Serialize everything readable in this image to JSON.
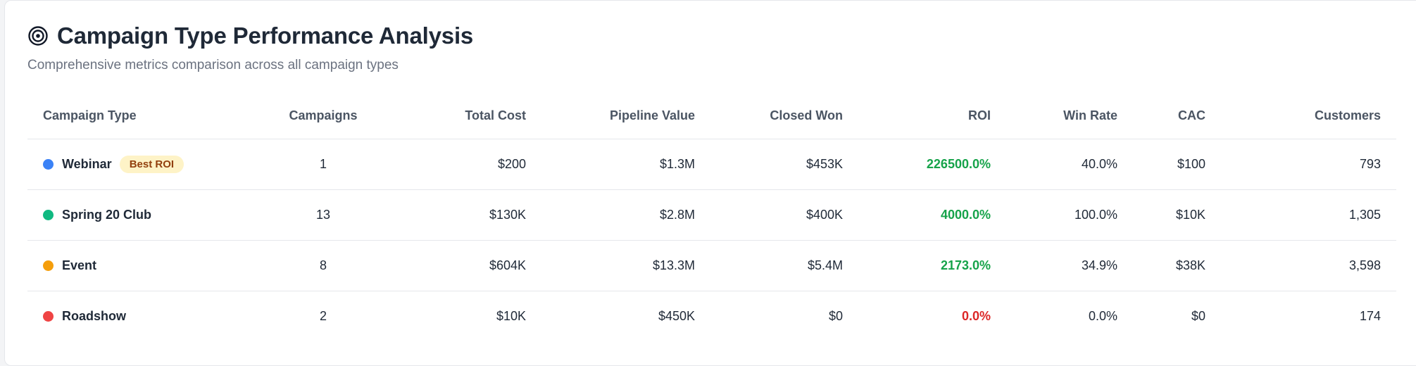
{
  "header": {
    "title": "Campaign Type Performance Analysis",
    "subtitle": "Comprehensive metrics comparison across all campaign types",
    "icon": "target-icon"
  },
  "columns": [
    "Campaign Type",
    "Campaigns",
    "Total Cost",
    "Pipeline Value",
    "Closed Won",
    "ROI",
    "Win Rate",
    "CAC",
    "Customers"
  ],
  "rows": [
    {
      "type": "Webinar",
      "dot_color": "#3b82f6",
      "badge": "Best ROI",
      "campaigns": "1",
      "total_cost": "$200",
      "pipeline_value": "$1.3M",
      "closed_won": "$453K",
      "roi": "226500.0%",
      "roi_color": "#16a34a",
      "win_rate": "40.0%",
      "cac": "$100",
      "customers": "793"
    },
    {
      "type": "Spring 20 Club",
      "dot_color": "#10b981",
      "badge": "",
      "campaigns": "13",
      "total_cost": "$130K",
      "pipeline_value": "$2.8M",
      "closed_won": "$400K",
      "roi": "4000.0%",
      "roi_color": "#16a34a",
      "win_rate": "100.0%",
      "cac": "$10K",
      "customers": "1,305"
    },
    {
      "type": "Event",
      "dot_color": "#f59e0b",
      "badge": "",
      "campaigns": "8",
      "total_cost": "$604K",
      "pipeline_value": "$13.3M",
      "closed_won": "$5.4M",
      "roi": "2173.0%",
      "roi_color": "#16a34a",
      "win_rate": "34.9%",
      "cac": "$38K",
      "customers": "3,598"
    },
    {
      "type": "Roadshow",
      "dot_color": "#ef4444",
      "badge": "",
      "campaigns": "2",
      "total_cost": "$10K",
      "pipeline_value": "$450K",
      "closed_won": "$0",
      "roi": "0.0%",
      "roi_color": "#dc2626",
      "win_rate": "0.0%",
      "cac": "$0",
      "customers": "174"
    }
  ]
}
